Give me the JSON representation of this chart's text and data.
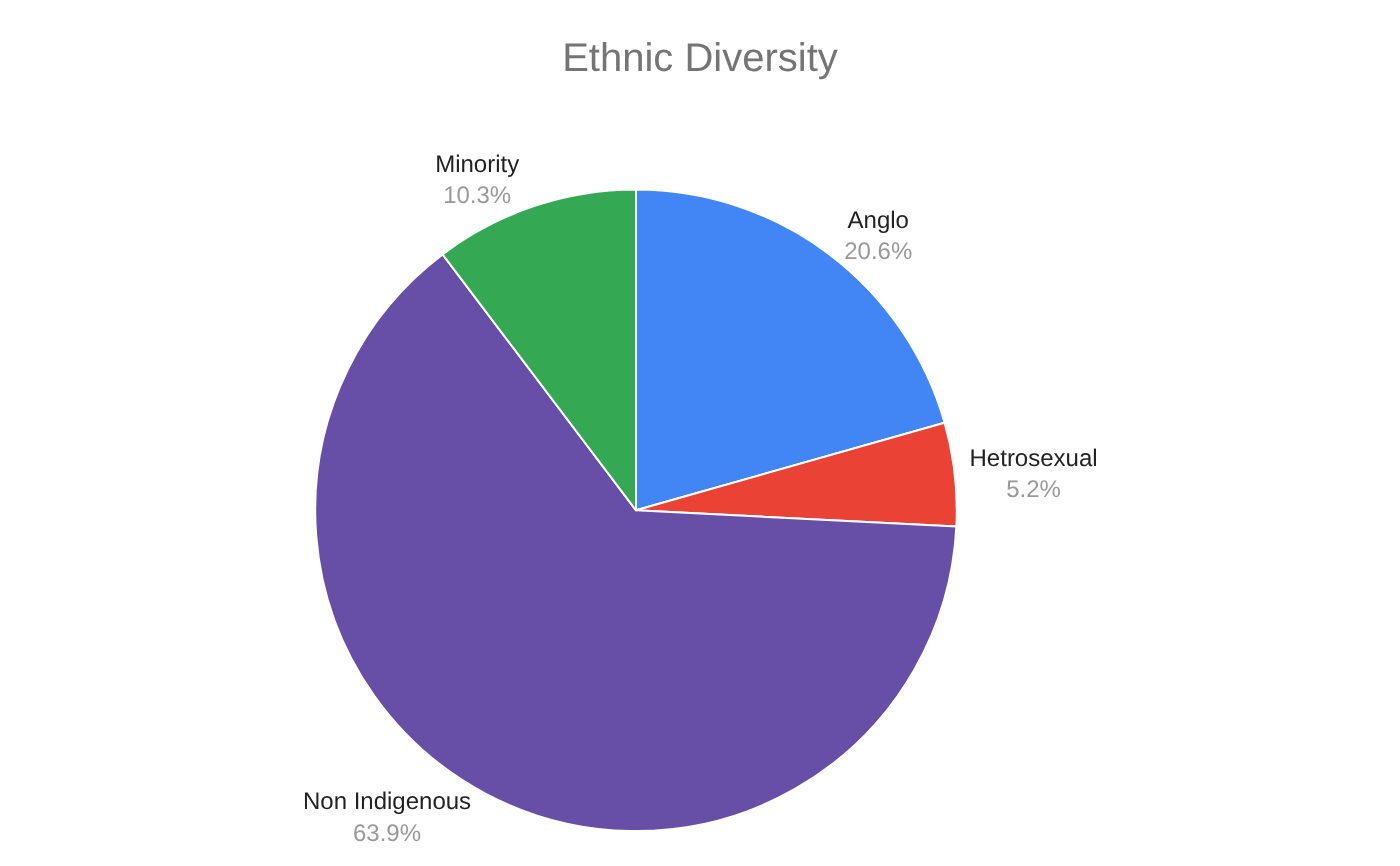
{
  "chart_data": {
    "type": "pie",
    "title": "Ethnic Diversity",
    "categories": [
      "Anglo",
      "Hetrosexual",
      "Non Indigenous",
      "Minority"
    ],
    "values": [
      20.6,
      5.2,
      63.9,
      10.3
    ],
    "value_labels": [
      "20.6%",
      "5.2%",
      "63.9%",
      "10.3%"
    ],
    "colors": [
      "#4285f4",
      "#ea4335",
      "#674ea7",
      "#34a853"
    ],
    "legend": false
  }
}
